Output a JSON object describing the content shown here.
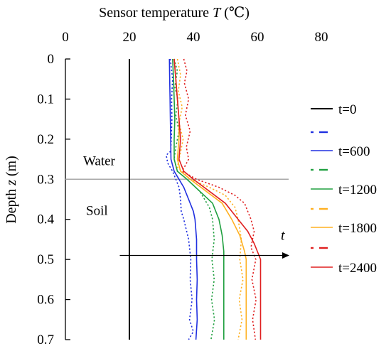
{
  "chart_data": {
    "type": "line",
    "title": "Sensor temperature T (℃)",
    "title_text": "Sensor temperature ",
    "title_var": "T",
    "title_unit": " (℃)",
    "xaxis_position": "top",
    "xlim": [
      0,
      80
    ],
    "xticks": [
      0,
      20,
      40,
      60,
      80
    ],
    "xtick_labels": [
      "0",
      "20",
      "40",
      "60",
      "80"
    ],
    "ylabel": "Depth z (m)",
    "ylabel_text": "Depth ",
    "ylabel_var": "z",
    "ylabel_unit": " (m)",
    "ylim": [
      0,
      0.7
    ],
    "y_inverted": true,
    "yticks": [
      0,
      0.1,
      0.2,
      0.3,
      0.4,
      0.5,
      0.6,
      0.7
    ],
    "ytick_labels": [
      "0",
      "0.1",
      "0.2",
      "0.3",
      "0.4",
      "0.5",
      "0.6",
      "0.7"
    ],
    "grid": false,
    "legend_position": "right",
    "legend": [
      "t=0",
      "t=600",
      "t=1200",
      "t=1800",
      "t=2400"
    ],
    "interface": {
      "depth": 0.3,
      "label_above": "Water",
      "label_below": "Soil"
    },
    "time_arrow": {
      "label": "t",
      "depth": 0.49,
      "x_from": 17,
      "x_to": 70
    },
    "series": [
      {
        "name": "t=0",
        "style": "solid",
        "color": "#000000",
        "points": [
          [
            20,
            0
          ],
          [
            20,
            0.7
          ]
        ]
      },
      {
        "name": "t=600",
        "style": "dashed",
        "color": "#2030e0",
        "points": [
          [
            32.8,
            0
          ],
          [
            33.5,
            0.05
          ],
          [
            33.2,
            0.1
          ],
          [
            33.3,
            0.15
          ],
          [
            33.1,
            0.2
          ],
          [
            32.9,
            0.23
          ],
          [
            31.5,
            0.24
          ],
          [
            32,
            0.26
          ],
          [
            33.5,
            0.28
          ],
          [
            34.5,
            0.3
          ],
          [
            35.5,
            0.32
          ],
          [
            36,
            0.35
          ],
          [
            36.2,
            0.38
          ],
          [
            37,
            0.4
          ],
          [
            38.5,
            0.45
          ],
          [
            39.2,
            0.5
          ],
          [
            39,
            0.55
          ],
          [
            39.6,
            0.6
          ],
          [
            38.8,
            0.65
          ],
          [
            40,
            0.68
          ],
          [
            38.5,
            0.7
          ]
        ]
      },
      {
        "name": "t=600",
        "style": "solid",
        "color": "#2030e0",
        "points": [
          [
            32.5,
            0
          ],
          [
            32.6,
            0.05
          ],
          [
            32.7,
            0.1
          ],
          [
            32.8,
            0.15
          ],
          [
            32.9,
            0.2
          ],
          [
            33,
            0.25
          ],
          [
            34,
            0.28
          ],
          [
            35.5,
            0.3
          ],
          [
            37,
            0.32
          ],
          [
            38.5,
            0.35
          ],
          [
            40,
            0.38
          ],
          [
            40.5,
            0.4
          ],
          [
            41,
            0.45
          ],
          [
            41,
            0.5
          ],
          [
            41.2,
            0.55
          ],
          [
            41,
            0.6
          ],
          [
            41.2,
            0.65
          ],
          [
            40.8,
            0.7
          ]
        ]
      },
      {
        "name": "t=1200",
        "style": "dashed",
        "color": "#20a040",
        "points": [
          [
            34,
            0
          ],
          [
            35,
            0.03
          ],
          [
            34.2,
            0.07
          ],
          [
            35.2,
            0.1
          ],
          [
            34.5,
            0.14
          ],
          [
            35.5,
            0.18
          ],
          [
            34.5,
            0.22
          ],
          [
            34,
            0.25
          ],
          [
            35,
            0.28
          ],
          [
            38,
            0.3
          ],
          [
            42,
            0.33
          ],
          [
            45,
            0.37
          ],
          [
            46,
            0.4
          ],
          [
            46.5,
            0.45
          ],
          [
            45.8,
            0.5
          ],
          [
            46.5,
            0.55
          ],
          [
            45.7,
            0.6
          ],
          [
            46.6,
            0.65
          ],
          [
            45.5,
            0.7
          ]
        ]
      },
      {
        "name": "t=1200",
        "style": "solid",
        "color": "#20a040",
        "points": [
          [
            33.5,
            0
          ],
          [
            33.8,
            0.05
          ],
          [
            34,
            0.1
          ],
          [
            34.2,
            0.15
          ],
          [
            34,
            0.2
          ],
          [
            34,
            0.25
          ],
          [
            35,
            0.28
          ],
          [
            38,
            0.3
          ],
          [
            42,
            0.33
          ],
          [
            46,
            0.36
          ],
          [
            48,
            0.4
          ],
          [
            49,
            0.44
          ],
          [
            49.5,
            0.48
          ],
          [
            49.5,
            0.5
          ],
          [
            49.5,
            0.6
          ],
          [
            49.5,
            0.7
          ]
        ]
      },
      {
        "name": "t=1800",
        "style": "dashed",
        "color": "#ffb020",
        "points": [
          [
            35,
            0
          ],
          [
            36,
            0.04
          ],
          [
            35.3,
            0.08
          ],
          [
            36.5,
            0.12
          ],
          [
            35.5,
            0.16
          ],
          [
            36.8,
            0.2
          ],
          [
            35.8,
            0.24
          ],
          [
            35,
            0.27
          ],
          [
            39,
            0.3
          ],
          [
            45,
            0.32
          ],
          [
            50,
            0.34
          ],
          [
            53,
            0.37
          ],
          [
            54,
            0.4
          ],
          [
            55,
            0.45
          ],
          [
            54.5,
            0.5
          ],
          [
            55.5,
            0.55
          ],
          [
            54.3,
            0.6
          ],
          [
            55.2,
            0.65
          ],
          [
            54,
            0.7
          ]
        ]
      },
      {
        "name": "t=1800",
        "style": "solid",
        "color": "#ffb020",
        "points": [
          [
            34,
            0
          ],
          [
            34.5,
            0.05
          ],
          [
            35,
            0.1
          ],
          [
            35.5,
            0.15
          ],
          [
            35.5,
            0.2
          ],
          [
            35,
            0.25
          ],
          [
            36,
            0.28
          ],
          [
            39,
            0.3
          ],
          [
            44,
            0.33
          ],
          [
            49,
            0.36
          ],
          [
            52,
            0.4
          ],
          [
            54.5,
            0.44
          ],
          [
            56,
            0.48
          ],
          [
            56.5,
            0.5
          ],
          [
            56.5,
            0.6
          ],
          [
            56.5,
            0.7
          ]
        ]
      },
      {
        "name": "t=2400",
        "style": "dashed",
        "color": "#e02020",
        "points": [
          [
            37,
            0
          ],
          [
            38,
            0.03
          ],
          [
            37.2,
            0.06
          ],
          [
            38.5,
            0.1
          ],
          [
            37.5,
            0.14
          ],
          [
            39,
            0.18
          ],
          [
            37.8,
            0.22
          ],
          [
            38.5,
            0.25
          ],
          [
            36.5,
            0.28
          ],
          [
            41,
            0.3
          ],
          [
            48,
            0.32
          ],
          [
            53,
            0.34
          ],
          [
            56,
            0.36
          ],
          [
            58,
            0.4
          ],
          [
            59,
            0.43
          ],
          [
            58,
            0.47
          ],
          [
            59.5,
            0.5
          ],
          [
            58.3,
            0.55
          ],
          [
            59.6,
            0.6
          ],
          [
            58.5,
            0.65
          ],
          [
            59.4,
            0.7
          ]
        ]
      },
      {
        "name": "t=2400",
        "style": "solid",
        "color": "#e02020",
        "points": [
          [
            34,
            0
          ],
          [
            34.5,
            0.05
          ],
          [
            35,
            0.1
          ],
          [
            35.5,
            0.15
          ],
          [
            36,
            0.2
          ],
          [
            35.5,
            0.25
          ],
          [
            37,
            0.28
          ],
          [
            40,
            0.3
          ],
          [
            45,
            0.33
          ],
          [
            50,
            0.36
          ],
          [
            54,
            0.4
          ],
          [
            57,
            0.43
          ],
          [
            59,
            0.46
          ],
          [
            60.5,
            0.49
          ],
          [
            61,
            0.5
          ],
          [
            61,
            0.6
          ],
          [
            61,
            0.7
          ]
        ]
      }
    ]
  }
}
